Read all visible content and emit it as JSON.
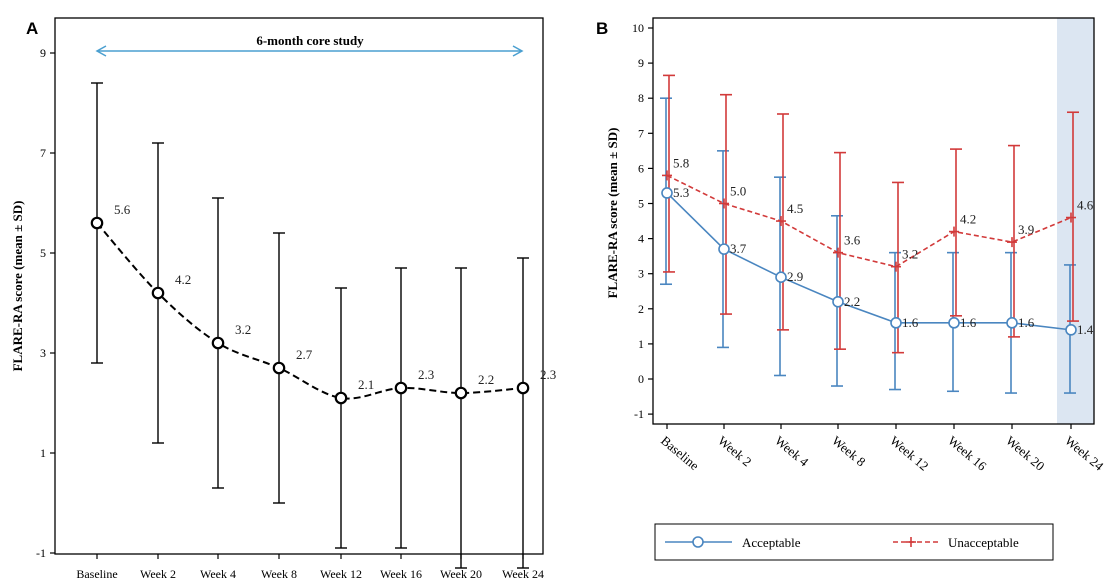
{
  "chart_data": [
    {
      "panel": "A",
      "type": "line",
      "categories": [
        "Baseline",
        "Week 2",
        "Week 4",
        "Week 8",
        "Week 12",
        "Week 16",
        "Week 20",
        "Week 24"
      ],
      "series": [
        {
          "values": [
            5.6,
            4.2,
            3.2,
            2.7,
            2.1,
            2.3,
            2.2,
            2.3
          ],
          "err_low": [
            2.8,
            1.2,
            0.3,
            0.0,
            -0.9,
            -0.9,
            -1.3,
            -1.3
          ],
          "err_high": [
            8.4,
            7.2,
            6.1,
            5.4,
            4.3,
            4.7,
            4.7,
            4.9
          ],
          "labels": [
            "5.6",
            "4.2",
            "3.2",
            "2.7",
            "2.1",
            "2.3",
            "2.2",
            "2.3"
          ],
          "color": "#000000",
          "style": "dashed",
          "marker": "circle"
        }
      ],
      "annotation": "6-month core study",
      "annotation_color": "#4a9fd0",
      "ylabel": "FLARE-RA score (mean  ± SD)",
      "ylim": [
        -1,
        10
      ],
      "yticks": [
        -1,
        1,
        3,
        5,
        7,
        9
      ],
      "grid": false
    },
    {
      "panel": "B",
      "type": "line",
      "categories": [
        "Baseline",
        "Week 2",
        "Week 4",
        "Week 8",
        "Week 12",
        "Week 16",
        "Week 20",
        "Week 24"
      ],
      "series": [
        {
          "name": "Acceptable",
          "values": [
            5.3,
            3.7,
            2.9,
            2.2,
            1.6,
            1.6,
            1.6,
            1.4
          ],
          "err_low": [
            2.7,
            0.9,
            0.1,
            -0.2,
            -0.3,
            -0.35,
            -0.4,
            -0.4
          ],
          "err_high": [
            8.0,
            6.5,
            5.75,
            4.65,
            3.6,
            3.6,
            3.6,
            3.25
          ],
          "labels": [
            "5.3",
            "3.7",
            "2.9",
            "2.2",
            "1.6",
            "1.6",
            "1.6",
            "1.4"
          ],
          "color": "#4a86c0",
          "style": "solid",
          "marker": "circle"
        },
        {
          "name": "Unacceptable",
          "values": [
            5.8,
            5.0,
            4.5,
            3.6,
            3.2,
            4.2,
            3.9,
            4.6
          ],
          "err_low": [
            3.05,
            1.85,
            1.4,
            0.85,
            0.75,
            1.8,
            1.2,
            1.65
          ],
          "err_high": [
            8.65,
            8.1,
            7.55,
            6.45,
            5.6,
            6.55,
            6.65,
            7.6
          ],
          "labels": [
            "5.8",
            "5.0",
            "4.5",
            "3.6",
            "3.2",
            "4.2",
            "3.9",
            "4.6"
          ],
          "color": "#d23a3a",
          "style": "dashed",
          "marker": "plus"
        }
      ],
      "ylabel": "FLARE-RA score (mean  ± SD)",
      "ylim": [
        -1,
        10
      ],
      "yticks": [
        -1,
        0,
        1,
        2,
        3,
        4,
        5,
        6,
        7,
        8,
        9,
        10
      ],
      "shaded_category": "Week 24",
      "shade_color": "#dce6f2",
      "legend": "bottom",
      "grid": false
    }
  ]
}
